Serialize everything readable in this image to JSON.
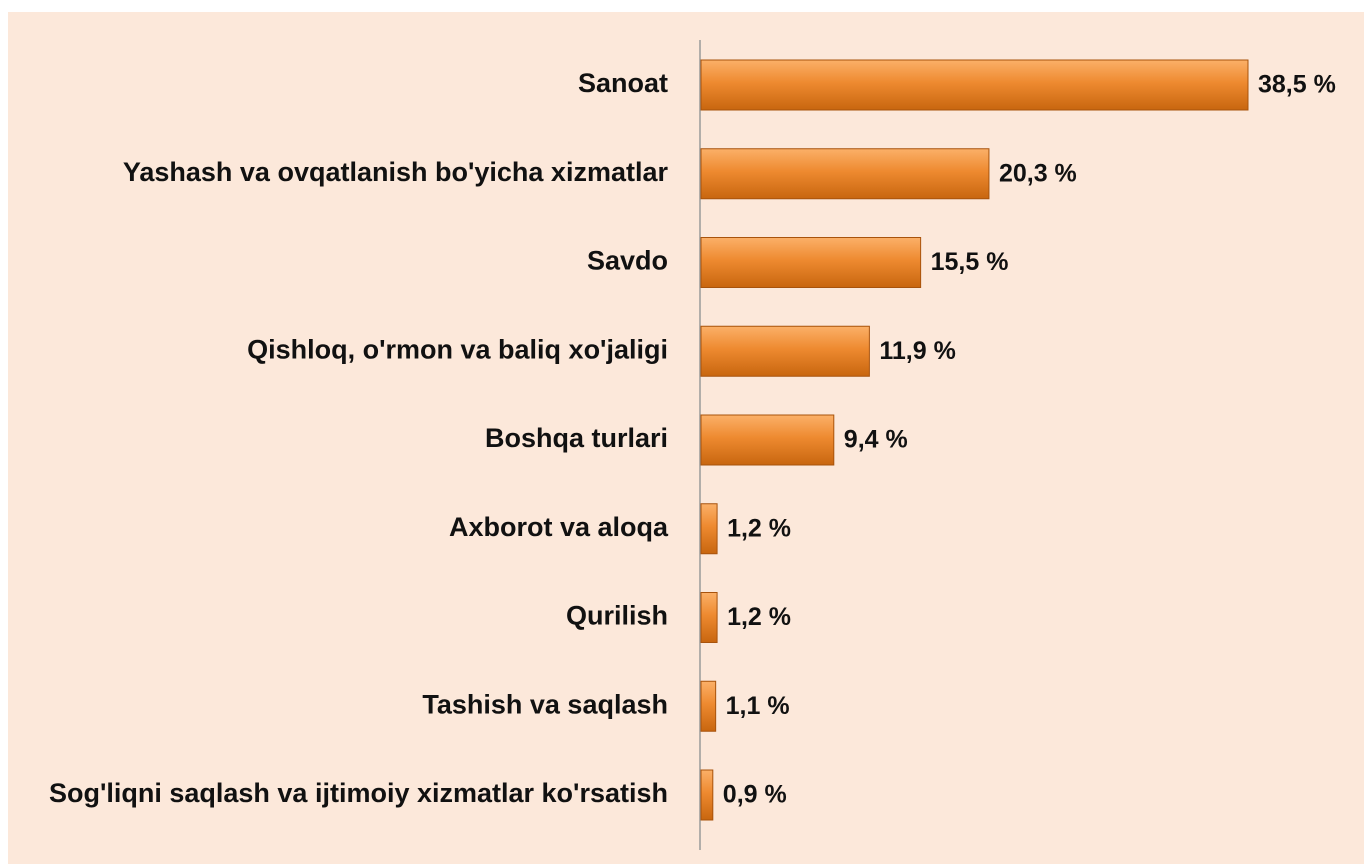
{
  "chart_data": {
    "type": "bar",
    "orientation": "horizontal",
    "color": "#e8832a",
    "categories": [
      "Sanoat",
      "Yashash va ovqatlanish bo'yicha xizmatlar",
      "Savdo",
      "Qishloq, o'rmon va baliq xo'jaligi",
      "Boshqa turlari",
      "Axborot va aloqa",
      "Qurilish",
      "Tashish va saqlash",
      "Sog'liqni saqlash va ijtimoiy xizmatlar ko'rsatish"
    ],
    "values": [
      38.5,
      20.3,
      15.5,
      11.9,
      9.4,
      1.2,
      1.2,
      1.1,
      0.9
    ],
    "value_labels": [
      "38,5 %",
      "20,3 %",
      "15,5 %",
      "11,9 %",
      "9,4 %",
      "1,2 %",
      "1,2 %",
      "1,1 %",
      "0,9 %"
    ]
  }
}
